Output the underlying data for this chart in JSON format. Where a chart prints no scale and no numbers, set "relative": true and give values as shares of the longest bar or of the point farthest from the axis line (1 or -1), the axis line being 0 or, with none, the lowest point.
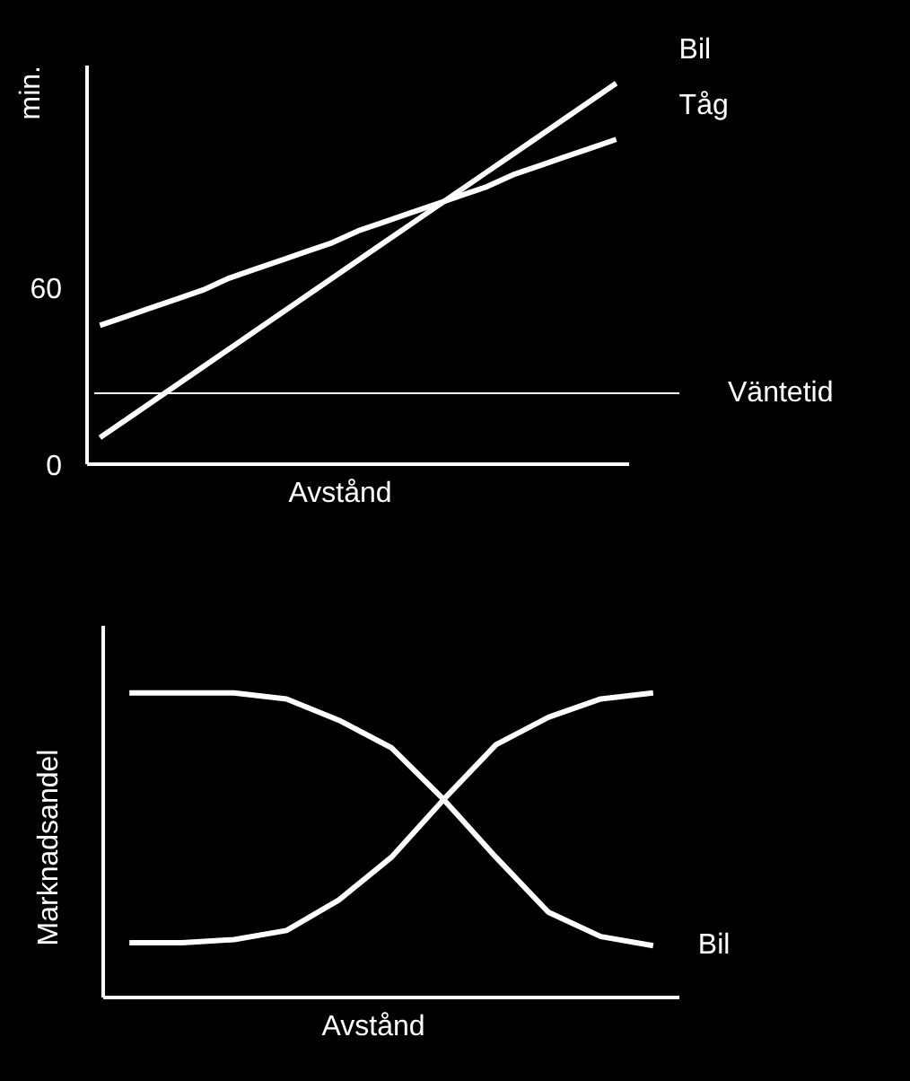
{
  "chart_data": [
    {
      "type": "line",
      "xlabel": "Avstånd",
      "ylabel": "min.",
      "categories": [
        null,
        null,
        null,
        null,
        null,
        null,
        null,
        null,
        null,
        null,
        null,
        null,
        null,
        null,
        null,
        null,
        null,
        null,
        null,
        null,
        null
      ],
      "ylim": [
        0,
        135
      ],
      "yticks": [
        0,
        60
      ],
      "grid": false,
      "legend": false,
      "ref_lines": [
        {
          "axis": "y",
          "value": 24,
          "label": "Väntetid"
        }
      ],
      "series": [
        {
          "name": "Bil",
          "color": "#ffffff",
          "values": [
            9,
            15,
            21,
            27,
            33,
            39,
            45,
            51,
            57,
            63,
            69,
            75,
            81,
            87,
            93,
            99,
            105,
            111,
            117,
            123,
            129
          ]
        },
        {
          "name": "Tåg",
          "color": "#ffffff",
          "values": [
            47,
            50,
            53,
            56,
            59,
            63,
            66,
            69,
            72,
            75,
            79,
            82,
            85,
            88,
            91,
            94,
            98,
            101,
            104,
            107,
            110
          ]
        }
      ]
    },
    {
      "type": "line",
      "relative": true,
      "xlabel": "Avstånd",
      "ylabel": "Marknadsandel",
      "grid": false,
      "legend": false,
      "categories": [
        null,
        null,
        null,
        null,
        null,
        null,
        null,
        null,
        null,
        null,
        null
      ],
      "series": [
        {
          "name": "Bil",
          "color": "#ffffff",
          "values": [
            1,
            1,
            1,
            0.98,
            0.91,
            0.82,
            0.65,
            0.46,
            0.28,
            0.2,
            0.17
          ]
        },
        {
          "color": "#ffffff",
          "values": [
            0.18,
            0.18,
            0.19,
            0.22,
            0.32,
            0.46,
            0.65,
            0.83,
            0.92,
            0.98,
            1
          ]
        }
      ]
    }
  ]
}
